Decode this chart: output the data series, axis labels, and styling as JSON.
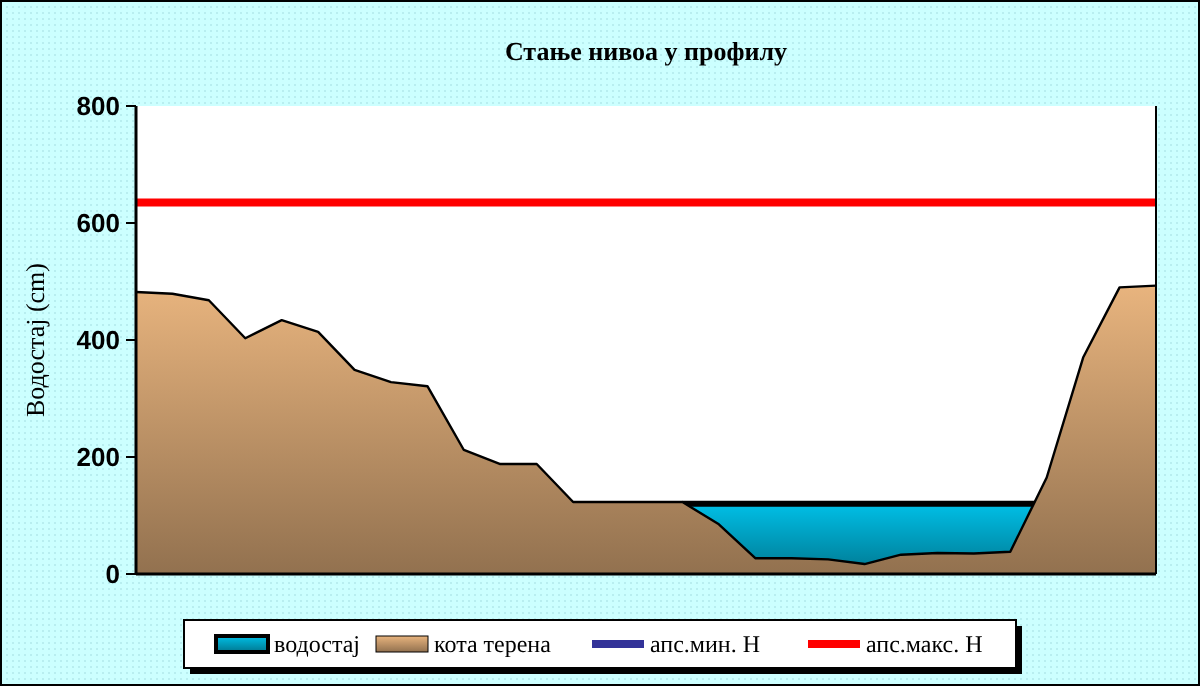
{
  "chart_data": {
    "type": "area",
    "title": "Стање нивоа у профилу",
    "ylabel": "Водостај (cm)",
    "categories": [
      null,
      null,
      null,
      null,
      null,
      null,
      null,
      null,
      null,
      null,
      null,
      null,
      null,
      null,
      null,
      null,
      null,
      null,
      null,
      null,
      null,
      null,
      null,
      null,
      null,
      null,
      null,
      null,
      null
    ],
    "ylim": [
      0,
      800
    ],
    "yticks": [
      0,
      200,
      400,
      600,
      800
    ],
    "grid": false,
    "legend": "bottom",
    "series": [
      {
        "name": "водостај",
        "type": "area",
        "color": "#00bfe6",
        "values": [
          null,
          null,
          null,
          null,
          null,
          null,
          null,
          null,
          null,
          null,
          null,
          null,
          null,
          null,
          null,
          120,
          120,
          120,
          120,
          120,
          120,
          120,
          120,
          120,
          120,
          120,
          null,
          null,
          null
        ]
      },
      {
        "name": "кота терена",
        "type": "area",
        "color": "#e8b47e",
        "values": [
          482,
          479,
          468,
          403,
          434,
          414,
          349,
          328,
          321,
          212,
          188,
          188,
          123,
          123,
          123,
          123,
          85,
          27,
          27,
          25,
          17,
          33,
          36,
          35,
          38,
          165,
          370,
          490,
          493
        ]
      },
      {
        "name": "апс.мин. H",
        "type": "line",
        "color": "#333399",
        "values": [
          null,
          null,
          null,
          null,
          null,
          null,
          null,
          null,
          null,
          null,
          null,
          null,
          null,
          null,
          null,
          null,
          null,
          null,
          null,
          null,
          null,
          null,
          null,
          null,
          null,
          null,
          null,
          null,
          null
        ]
      },
      {
        "name": "апс.макс. H",
        "type": "line",
        "color": "#ff0000",
        "values": [
          635,
          635,
          635,
          635,
          635,
          635,
          635,
          635,
          635,
          635,
          635,
          635,
          635,
          635,
          635,
          635,
          635,
          635,
          635,
          635,
          635,
          635,
          635,
          635,
          635,
          635,
          635,
          635,
          635
        ]
      }
    ]
  }
}
